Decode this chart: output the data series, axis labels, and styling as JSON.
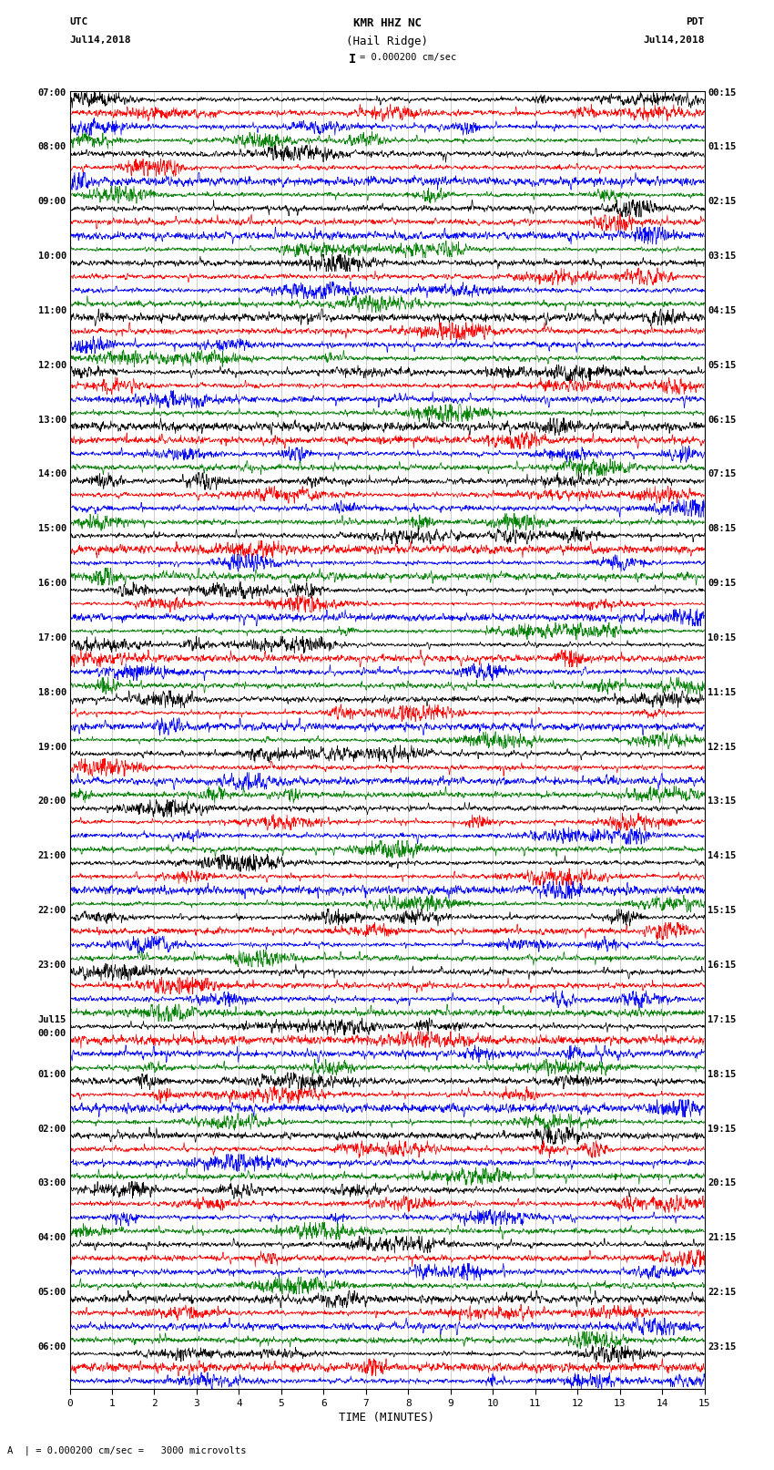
{
  "title_line1": "KMR HHZ NC",
  "title_line2": "(Hail Ridge)",
  "scale_label": "= 0.000200 cm/sec",
  "footer_label": "A  | = 0.000200 cm/sec =   3000 microvolts",
  "xlabel": "TIME (MINUTES)",
  "left_header1": "UTC",
  "left_header2": "Jul14,2018",
  "right_header1": "PDT",
  "right_header2": "Jul14,2018",
  "left_times": [
    "07:00",
    "",
    "",
    "",
    "08:00",
    "",
    "",
    "",
    "09:00",
    "",
    "",
    "",
    "10:00",
    "",
    "",
    "",
    "11:00",
    "",
    "",
    "",
    "12:00",
    "",
    "",
    "",
    "13:00",
    "",
    "",
    "",
    "14:00",
    "",
    "",
    "",
    "15:00",
    "",
    "",
    "",
    "16:00",
    "",
    "",
    "",
    "17:00",
    "",
    "",
    "",
    "18:00",
    "",
    "",
    "",
    "19:00",
    "",
    "",
    "",
    "20:00",
    "",
    "",
    "",
    "21:00",
    "",
    "",
    "",
    "22:00",
    "",
    "",
    "",
    "23:00",
    "",
    "",
    "",
    "Jul15",
    "00:00",
    "",
    "",
    "01:00",
    "",
    "",
    "",
    "02:00",
    "",
    "",
    "",
    "03:00",
    "",
    "",
    "",
    "04:00",
    "",
    "",
    "",
    "05:00",
    "",
    "",
    "",
    "06:00",
    "",
    ""
  ],
  "right_times": [
    "00:15",
    "",
    "",
    "",
    "01:15",
    "",
    "",
    "",
    "02:15",
    "",
    "",
    "",
    "03:15",
    "",
    "",
    "",
    "04:15",
    "",
    "",
    "",
    "05:15",
    "",
    "",
    "",
    "06:15",
    "",
    "",
    "",
    "07:15",
    "",
    "",
    "",
    "08:15",
    "",
    "",
    "",
    "09:15",
    "",
    "",
    "",
    "10:15",
    "",
    "",
    "",
    "11:15",
    "",
    "",
    "",
    "12:15",
    "",
    "",
    "",
    "13:15",
    "",
    "",
    "",
    "14:15",
    "",
    "",
    "",
    "15:15",
    "",
    "",
    "",
    "16:15",
    "",
    "",
    "",
    "17:15",
    "",
    "",
    "",
    "18:15",
    "",
    "",
    "",
    "19:15",
    "",
    "",
    "",
    "20:15",
    "",
    "",
    "",
    "21:15",
    "",
    "",
    "",
    "22:15",
    "",
    "",
    "",
    "23:15",
    "",
    ""
  ],
  "trace_colors": [
    "black",
    "red",
    "blue",
    "green"
  ],
  "num_rows": 95,
  "fig_width": 8.5,
  "fig_height": 16.13,
  "bg_color": "white",
  "trace_amplitude": 0.42,
  "noise_seed": 42
}
